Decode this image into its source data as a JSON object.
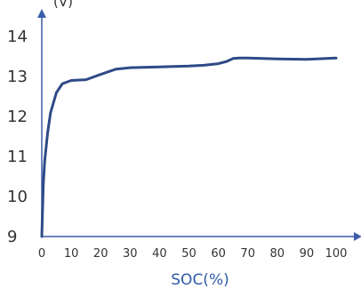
{
  "chart_data": {
    "type": "line",
    "title": "",
    "ylabel_partial": "(V)",
    "xlabel": "SOC(%)",
    "xlim": [
      0,
      100
    ],
    "ylim": [
      9,
      14.6
    ],
    "xticks": [
      "0",
      "10",
      "20",
      "30",
      "40",
      "50",
      "60",
      "70",
      "80",
      "90",
      "100"
    ],
    "yticks": [
      "9",
      "10",
      "11",
      "12",
      "13",
      "14"
    ],
    "grid": false,
    "series": [
      {
        "color": "#2e4a86",
        "x": [
          0,
          0.5,
          1,
          2,
          3,
          5,
          7,
          10,
          15,
          20,
          25,
          30,
          40,
          50,
          55,
          60,
          63,
          65,
          67,
          70,
          80,
          90,
          100
        ],
        "y": [
          9.0,
          10.3,
          10.9,
          11.6,
          12.1,
          12.6,
          12.82,
          12.9,
          12.92,
          13.05,
          13.18,
          13.22,
          13.24,
          13.26,
          13.28,
          13.32,
          13.38,
          13.45,
          13.46,
          13.46,
          13.44,
          13.43,
          13.46
        ]
      }
    ],
    "colors": {
      "line": "#2e4a86",
      "axis": "#3b5ca8",
      "xlabel": "#2e5aa8"
    }
  }
}
